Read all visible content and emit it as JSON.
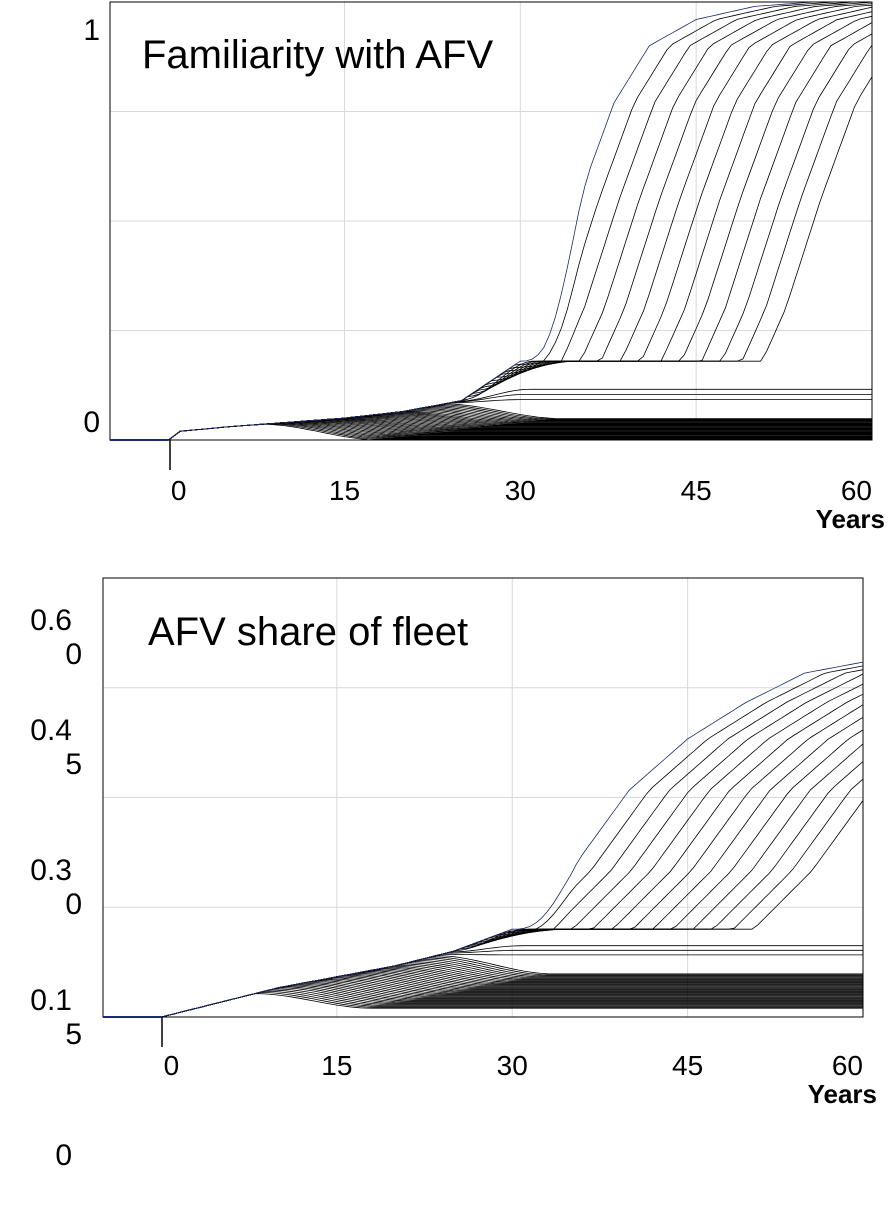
{
  "chart_data": [
    {
      "type": "line",
      "title": "Familiarity with AFV",
      "xlabel": "Years",
      "ylabel": "",
      "x_ticks": [
        "0",
        "15",
        "30",
        "45",
        "60"
      ],
      "y_ticks": [
        "0",
        "1"
      ],
      "xlim": [
        -5,
        60
      ],
      "ylim": [
        0,
        1
      ],
      "grid": true,
      "series_count": 55,
      "baseline_start": [
        [
          -5,
          0
        ],
        [
          0,
          0
        ],
        [
          1,
          0.02
        ],
        [
          5,
          0.03
        ],
        [
          10,
          0.04
        ],
        [
          15,
          0.05
        ],
        [
          20,
          0.065
        ],
        [
          25,
          0.09
        ],
        [
          30,
          0.18
        ]
      ],
      "upper_envelope": [
        [
          30,
          0.18
        ],
        [
          32,
          0.3
        ],
        [
          35,
          0.55
        ],
        [
          38,
          0.77
        ],
        [
          41,
          0.9
        ],
        [
          45,
          0.96
        ],
        [
          50,
          0.99
        ],
        [
          55,
          1.0
        ],
        [
          60,
          1.0
        ]
      ],
      "example_upper_trajectories": [
        [
          [
            30,
            0.18
          ],
          [
            35,
            0.2
          ],
          [
            40,
            0.23
          ],
          [
            45,
            0.4
          ],
          [
            50,
            0.7
          ],
          [
            55,
            0.88
          ],
          [
            60,
            0.95
          ]
        ],
        [
          [
            30,
            0.18
          ],
          [
            35,
            0.16
          ],
          [
            40,
            0.13
          ],
          [
            45,
            0.11
          ],
          [
            50,
            0.1
          ],
          [
            55,
            0.1
          ],
          [
            60,
            0.12
          ]
        ]
      ],
      "lower_band_end": [
        0.0,
        0.05
      ]
    },
    {
      "type": "line",
      "title": "AFV share of fleet",
      "xlabel": "Years",
      "ylabel": "",
      "x_ticks": [
        "0",
        "15",
        "30",
        "45",
        "60"
      ],
      "y_ticks": [
        "0.6\n0",
        "0.4\n5",
        "0.3\n0",
        "0.1\n5",
        "0"
      ],
      "xlim": [
        -5,
        60
      ],
      "ylim": [
        0,
        0.6
      ],
      "grid": true,
      "series_count": 55,
      "baseline_start": [
        [
          -5,
          0
        ],
        [
          0,
          0
        ],
        [
          5,
          0.02
        ],
        [
          10,
          0.04
        ],
        [
          15,
          0.055
        ],
        [
          20,
          0.07
        ],
        [
          25,
          0.09
        ],
        [
          30,
          0.12
        ]
      ],
      "upper_envelope": [
        [
          30,
          0.12
        ],
        [
          35,
          0.2
        ],
        [
          40,
          0.31
        ],
        [
          45,
          0.38
        ],
        [
          50,
          0.43
        ],
        [
          55,
          0.47
        ],
        [
          60,
          0.485
        ]
      ],
      "example_upper_trajectories": [
        [
          [
            30,
            0.12
          ],
          [
            35,
            0.14
          ],
          [
            40,
            0.15
          ],
          [
            45,
            0.16
          ],
          [
            50,
            0.22
          ],
          [
            55,
            0.29
          ],
          [
            60,
            0.34
          ]
        ],
        [
          [
            30,
            0.12
          ],
          [
            35,
            0.14
          ],
          [
            40,
            0.145
          ],
          [
            45,
            0.145
          ],
          [
            50,
            0.15
          ],
          [
            55,
            0.155
          ],
          [
            60,
            0.16
          ]
        ]
      ],
      "lower_band_end": [
        0.02,
        0.1
      ]
    }
  ]
}
